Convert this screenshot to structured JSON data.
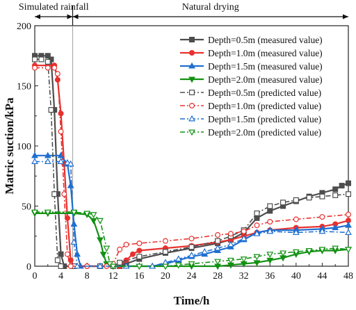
{
  "chart_data": {
    "type": "line",
    "title": "",
    "xlabel": "Time/h",
    "ylabel": "Matric suction/kPa",
    "xlim": [
      0,
      48
    ],
    "ylim": [
      0,
      200
    ],
    "xticks": [
      0,
      4,
      8,
      12,
      16,
      20,
      24,
      28,
      32,
      36,
      40,
      44,
      48
    ],
    "yticks": [
      0,
      50,
      100,
      150,
      200
    ],
    "grid": false,
    "legend_position": "top-right",
    "phases": [
      {
        "label": "Simulated rainfall",
        "x_start": 0,
        "x_end": 5.8
      },
      {
        "label": "Natural drying",
        "x_start": 5.8,
        "x_end": 48
      }
    ],
    "divider_x": 5.8,
    "series": [
      {
        "name": "Depth=0.5m (measured value)",
        "color": "#4d4d4d",
        "dash": "solid",
        "marker": "square",
        "filled": true,
        "points": [
          [
            0,
            175
          ],
          [
            1,
            175
          ],
          [
            2,
            175
          ],
          [
            2.5,
            172
          ],
          [
            3,
            130
          ],
          [
            3.5,
            60
          ],
          [
            4,
            10
          ],
          [
            4.5,
            0
          ],
          [
            6,
            0
          ],
          [
            10,
            0
          ],
          [
            13,
            0
          ],
          [
            14,
            2
          ],
          [
            16,
            6
          ],
          [
            20,
            11
          ],
          [
            24,
            15
          ],
          [
            28,
            19
          ],
          [
            30,
            22
          ],
          [
            32,
            28
          ],
          [
            34,
            40
          ],
          [
            36,
            46
          ],
          [
            38,
            50
          ],
          [
            40,
            54
          ],
          [
            42,
            58
          ],
          [
            44,
            61
          ],
          [
            46,
            64
          ],
          [
            47,
            67
          ],
          [
            48,
            69
          ]
        ]
      },
      {
        "name": "Depth=1.0m (measured value)",
        "color": "#e8312f",
        "dash": "solid",
        "marker": "circle",
        "filled": true,
        "points": [
          [
            0,
            167
          ],
          [
            2,
            167
          ],
          [
            3,
            167
          ],
          [
            3.5,
            155
          ],
          [
            4,
            127
          ],
          [
            4.5,
            85
          ],
          [
            5,
            40
          ],
          [
            5.5,
            5
          ],
          [
            6,
            0
          ],
          [
            8,
            0
          ],
          [
            10,
            0
          ],
          [
            12,
            0
          ],
          [
            13,
            0
          ],
          [
            14,
            5
          ],
          [
            15,
            10
          ],
          [
            16,
            13
          ],
          [
            20,
            15
          ],
          [
            24,
            17
          ],
          [
            28,
            20
          ],
          [
            30,
            22
          ],
          [
            32,
            25
          ],
          [
            34,
            28
          ],
          [
            36,
            30
          ],
          [
            40,
            32
          ],
          [
            44,
            33
          ],
          [
            46,
            35
          ],
          [
            48,
            38
          ]
        ]
      },
      {
        "name": "Depth=1.5m (measured value)",
        "color": "#1f6fd1",
        "dash": "solid",
        "marker": "triangle-up",
        "filled": true,
        "points": [
          [
            0,
            92
          ],
          [
            2,
            92
          ],
          [
            4,
            92
          ],
          [
            5,
            85
          ],
          [
            5.5,
            67
          ],
          [
            6,
            35
          ],
          [
            6.5,
            10
          ],
          [
            7,
            0
          ],
          [
            10,
            0
          ],
          [
            14,
            0
          ],
          [
            18,
            0
          ],
          [
            20,
            2
          ],
          [
            22,
            5
          ],
          [
            24,
            8
          ],
          [
            26,
            10
          ],
          [
            28,
            13
          ],
          [
            30,
            16
          ],
          [
            32,
            22
          ],
          [
            34,
            28
          ],
          [
            36,
            30
          ],
          [
            40,
            30
          ],
          [
            44,
            31
          ],
          [
            46,
            32
          ],
          [
            48,
            34
          ]
        ]
      },
      {
        "name": "Depth=2.0m (measured value)",
        "color": "#139113",
        "dash": "solid",
        "marker": "triangle-down",
        "filled": true,
        "points": [
          [
            0,
            44
          ],
          [
            2,
            44
          ],
          [
            6,
            44
          ],
          [
            8,
            43
          ],
          [
            9,
            38
          ],
          [
            10,
            22
          ],
          [
            10.5,
            10
          ],
          [
            11,
            2
          ],
          [
            12,
            0
          ],
          [
            16,
            0
          ],
          [
            20,
            0
          ],
          [
            24,
            0
          ],
          [
            28,
            0
          ],
          [
            30,
            1
          ],
          [
            32,
            2
          ],
          [
            34,
            3
          ],
          [
            36,
            5
          ],
          [
            38,
            7
          ],
          [
            40,
            10
          ],
          [
            42,
            12
          ],
          [
            44,
            13
          ],
          [
            46,
            13
          ],
          [
            48,
            14
          ]
        ]
      },
      {
        "name": "Depth=0.5m (predicted value)",
        "color": "#4d4d4d",
        "dash": "dashdot",
        "marker": "square",
        "filled": false,
        "points": [
          [
            0,
            172
          ],
          [
            1,
            172
          ],
          [
            2,
            170
          ],
          [
            2.5,
            130
          ],
          [
            3,
            60
          ],
          [
            3.5,
            5
          ],
          [
            4,
            0
          ],
          [
            6,
            0
          ],
          [
            10,
            0
          ],
          [
            12,
            0
          ],
          [
            13,
            3
          ],
          [
            16,
            8
          ],
          [
            20,
            12
          ],
          [
            24,
            16
          ],
          [
            28,
            21
          ],
          [
            30,
            25
          ],
          [
            32,
            30
          ],
          [
            34,
            44
          ],
          [
            36,
            50
          ],
          [
            38,
            53
          ],
          [
            40,
            55
          ],
          [
            42,
            57
          ],
          [
            44,
            58
          ],
          [
            46,
            59
          ],
          [
            48,
            60
          ]
        ]
      },
      {
        "name": "Depth=1.0m (predicted value)",
        "color": "#e8312f",
        "dash": "dashdot",
        "marker": "circle",
        "filled": false,
        "points": [
          [
            0,
            165
          ],
          [
            2,
            165
          ],
          [
            3,
            165
          ],
          [
            3.5,
            160
          ],
          [
            4,
            112
          ],
          [
            4.5,
            60
          ],
          [
            5,
            10
          ],
          [
            5.5,
            0
          ],
          [
            8,
            0
          ],
          [
            11,
            0
          ],
          [
            12,
            2
          ],
          [
            13,
            14
          ],
          [
            14,
            18
          ],
          [
            16,
            19
          ],
          [
            20,
            21
          ],
          [
            24,
            23
          ],
          [
            28,
            26
          ],
          [
            30,
            27
          ],
          [
            32,
            29
          ],
          [
            34,
            34
          ],
          [
            36,
            37
          ],
          [
            40,
            39
          ],
          [
            44,
            41
          ],
          [
            48,
            43
          ]
        ]
      },
      {
        "name": "Depth=1.5m (predicted value)",
        "color": "#1f6fd1",
        "dash": "dashdot",
        "marker": "triangle-up",
        "filled": false,
        "points": [
          [
            0,
            87
          ],
          [
            2,
            87
          ],
          [
            4,
            87
          ],
          [
            5,
            86
          ],
          [
            5.5,
            85
          ],
          [
            6,
            20
          ],
          [
            6.5,
            0
          ],
          [
            10,
            0
          ],
          [
            14,
            0
          ],
          [
            18,
            0
          ],
          [
            20,
            3
          ],
          [
            22,
            6
          ],
          [
            24,
            9
          ],
          [
            26,
            12
          ],
          [
            28,
            15
          ],
          [
            30,
            18
          ],
          [
            32,
            23
          ],
          [
            34,
            27
          ],
          [
            36,
            29
          ],
          [
            40,
            28
          ],
          [
            44,
            29
          ],
          [
            48,
            28
          ]
        ]
      },
      {
        "name": "Depth=2.0m (predicted value)",
        "color": "#139113",
        "dash": "dashdot",
        "marker": "triangle-down",
        "filled": false,
        "points": [
          [
            0,
            45
          ],
          [
            2,
            45
          ],
          [
            6,
            45
          ],
          [
            8,
            44
          ],
          [
            9,
            43
          ],
          [
            10,
            38
          ],
          [
            11,
            15
          ],
          [
            11.5,
            2
          ],
          [
            12,
            0
          ],
          [
            16,
            0
          ],
          [
            20,
            0
          ],
          [
            22,
            1
          ],
          [
            24,
            2
          ],
          [
            28,
            4
          ],
          [
            30,
            5
          ],
          [
            32,
            6
          ],
          [
            34,
            8
          ],
          [
            36,
            10
          ],
          [
            38,
            11
          ],
          [
            40,
            12
          ],
          [
            42,
            13
          ],
          [
            44,
            14
          ],
          [
            46,
            15
          ],
          [
            48,
            14
          ]
        ]
      }
    ]
  }
}
